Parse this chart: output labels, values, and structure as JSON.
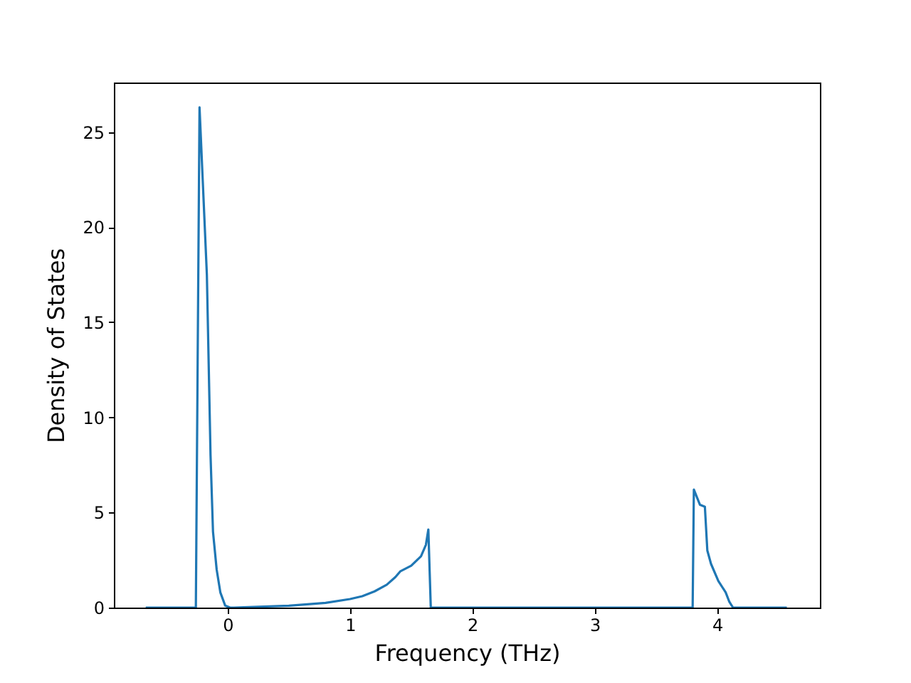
{
  "chart_data": {
    "type": "line",
    "xlabel": "Frequency (THz)",
    "ylabel": "Density of States",
    "x": [
      -0.67,
      -0.26,
      -0.23,
      -0.17,
      -0.14,
      -0.12,
      -0.09,
      -0.06,
      -0.02,
      0.02,
      0.05,
      0.5,
      0.8,
      1.0,
      1.1,
      1.2,
      1.3,
      1.37,
      1.41,
      1.5,
      1.58,
      1.62,
      1.64,
      1.66,
      3.8,
      3.81,
      3.86,
      3.9,
      3.92,
      3.95,
      4.01,
      4.07,
      4.1,
      4.13,
      4.57
    ],
    "series": [
      {
        "color": "#1f77b4",
        "values": [
          0,
          0,
          26.3,
          17.5,
          8,
          4,
          2,
          0.8,
          0.1,
          0,
          0,
          0.1,
          0.25,
          0.45,
          0.6,
          0.85,
          1.2,
          1.6,
          1.9,
          2.2,
          2.7,
          3.3,
          4.1,
          0,
          0,
          6.2,
          5.4,
          5.3,
          3.0,
          2.3,
          1.4,
          0.8,
          0.3,
          0,
          0
        ]
      }
    ],
    "xlim": [
      -0.93,
      4.84
    ],
    "ylim": [
      0,
      27.6
    ],
    "xticks": [
      0,
      1,
      2,
      3,
      4
    ],
    "yticks": [
      0,
      5,
      10,
      15,
      20,
      25
    ],
    "grid": false
  }
}
